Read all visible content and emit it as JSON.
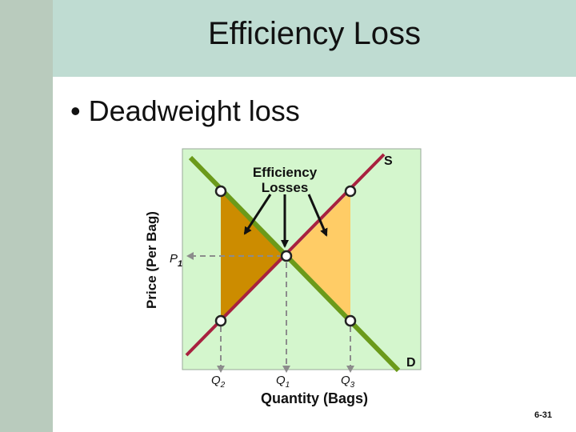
{
  "slide": {
    "title": "Efficiency Loss",
    "bullet": "• Deadweight loss",
    "slide_number": "6-31"
  },
  "diagram": {
    "y_axis_label": "Price (Per Bag)",
    "x_axis_label": "Quantity (Bags)",
    "annotation": [
      "Efficiency",
      "Losses"
    ],
    "supply_label": "S",
    "demand_label": "D",
    "price_label": {
      "letter": "P",
      "sub": "1"
    },
    "quantity_labels": [
      {
        "letter": "Q",
        "sub": "2"
      },
      {
        "letter": "Q",
        "sub": "1"
      },
      {
        "letter": "Q",
        "sub": "3"
      }
    ]
  },
  "colors": {
    "plot_background": "#d4f6cd",
    "supply_line": "#a8213f",
    "demand_line": "#6b9a1a",
    "left_triangle": "#cc8c00",
    "right_triangle": "#ffcc66",
    "guide_lines": "#8c8c8c",
    "title_bar": "#bfdcd2"
  }
}
